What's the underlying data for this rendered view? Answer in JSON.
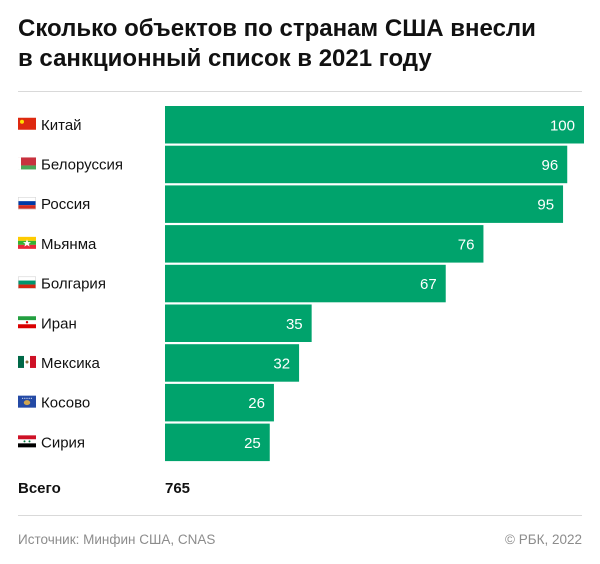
{
  "title_line1": "Сколько объектов по странам США внесли",
  "title_line2": "в санкционный список в 2021 году",
  "chart_data": {
    "type": "bar",
    "orientation": "horizontal",
    "categories": [
      "Китай",
      "Белоруссия",
      "Россия",
      "Мьянма",
      "Болгария",
      "Иран",
      "Мексика",
      "Косово",
      "Сирия"
    ],
    "values": [
      100,
      96,
      95,
      76,
      67,
      35,
      32,
      26,
      25
    ],
    "flags": [
      "china-flag-icon",
      "belarus-flag-icon",
      "russia-flag-icon",
      "myanmar-flag-icon",
      "bulgaria-flag-icon",
      "iran-flag-icon",
      "mexico-flag-icon",
      "kosovo-flag-icon",
      "syria-flag-icon"
    ],
    "xlim": [
      0,
      100
    ],
    "bar_color": "#00a36c",
    "grid": false
  },
  "total": {
    "label": "Всего",
    "value": "765"
  },
  "footer": {
    "source": "Источник: Минфин США, CNAS",
    "copyright": "© РБК, 2022"
  }
}
